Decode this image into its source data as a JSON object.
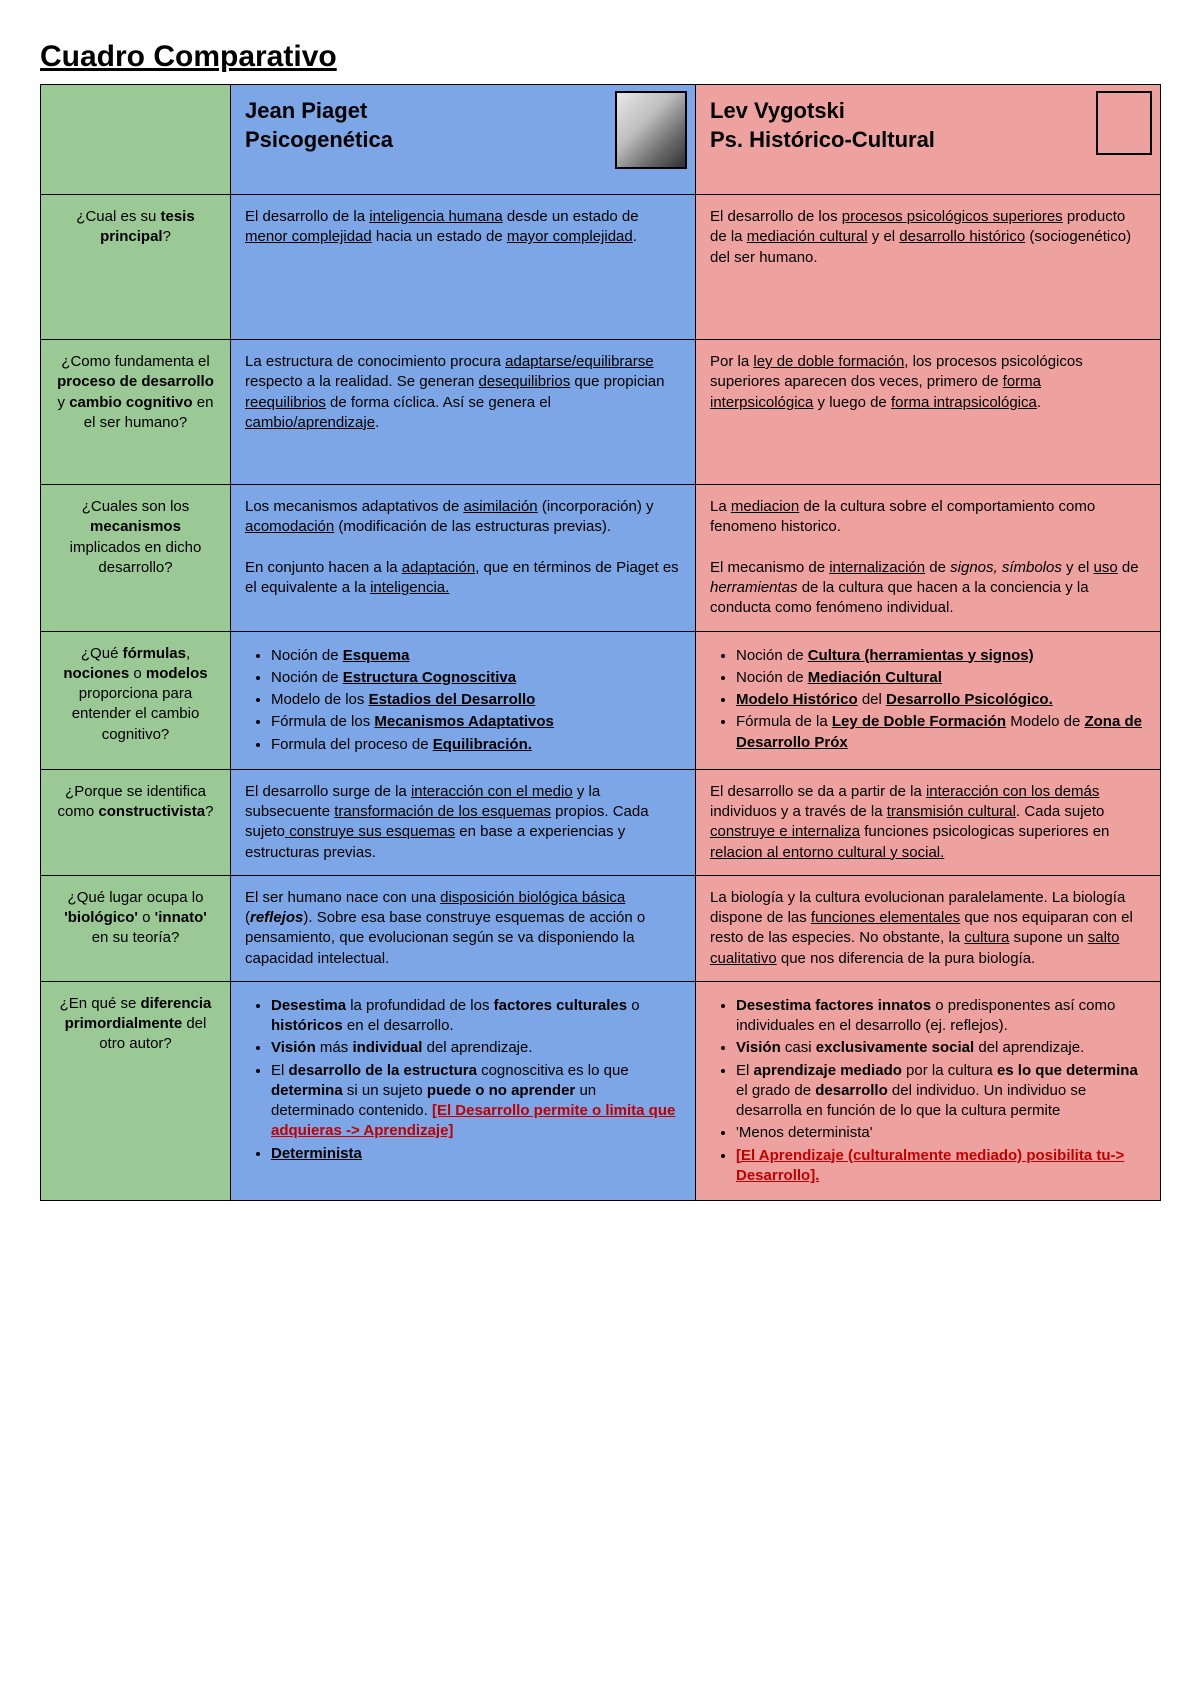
{
  "title": "Cuadro Comparativo",
  "colors": {
    "green": "#9bc995",
    "blue": "#7ca6e5",
    "pink": "#eea2a0",
    "red_text": "#c00000",
    "border": "#000000"
  },
  "headers": {
    "piaget_name": "Jean Piaget",
    "piaget_sub": "Psicogenética",
    "vygotski_name": "Lev Vygotski",
    "vygotski_sub": "Ps. Histórico-Cultural"
  },
  "rows": [
    {
      "q_pre": "¿Cual es su ",
      "q_b": "tesis principal",
      "q_post": "?",
      "piaget": "El desarrollo de la <u>inteligencia humana</u> desde un estado de <u>menor complejidad</u> hacia un estado de <u>mayor complejidad</u>.",
      "vygotski": "El desarrollo de los <u>procesos psicológicos superiores</u> producto de la <u>mediación cultural</u> y el <u>desarrollo histórico</u> (sociogenético) del ser humano."
    },
    {
      "q_html": "¿Como fundamenta el <b>proceso de desarrollo</b> y <b>cambio cognitivo</b> en el ser humano?",
      "piaget": "La estructura de conocimiento procura <u>adaptarse/equilibrarse</u> respecto a la realidad. Se generan <u>desequilibrios</u> que propician <u>reequilibrios</u> de forma cíclica. Así se genera el <u>cambio/aprendizaje</u>.",
      "vygotski": "Por la <u>ley de doble formación</u>, los procesos psicológicos superiores aparecen dos veces, primero de <u>forma interpsicológica</u> y luego de <u>forma intrapsicológica</u>."
    },
    {
      "q_html": "¿Cuales son los <b>mecanismos</b> implicados en dicho desarrollo?",
      "piaget": "Los mecanismos adaptativos de <u>asimilación</u> (incorporación) y <u>acomodación</u> (modificación de las estructuras previas).<br><br>En conjunto hacen a la <u>adaptación</u>, que en términos de Piaget es el equivalente a la <u>inteligencia.</u>",
      "vygotski": "La <u>mediacion</u> de la cultura sobre el comportamiento como fenomeno historico.<br><br>El mecanismo de <u>internalización</u> de <i>signos, símbolos</i> y el <u>uso</u> de <i>herramientas</i> de la cultura que hacen a la conciencia y la conducta como fenómeno individual."
    },
    {
      "q_html": "¿Qué <b>fórmulas</b>, <b>nociones</b> o <b>modelos</b> proporciona para entender el cambio cognitivo?",
      "piaget_list": [
        "Noción de <b><u>Esquema</u></b>",
        "Noción de <b><u>Estructura Cognoscitiva</u></b>",
        "Modelo de los <b><u>Estadios del Desarrollo</u></b>",
        "Fórmula de los <b><u>Mecanismos Adaptativos</u></b>",
        "Formula del proceso de <b><u>Equilibración.</u></b>"
      ],
      "vygotski_list": [
        "Noción de <b><u>Cultura (herramientas y signos)</u></b>",
        "Noción de <b><u>Mediación Cultural</u></b>",
        "<b><u>Modelo Histórico</u></b> del <b><u>Desarrollo Psicológico.</u></b>",
        "Fórmula de la <b><u>Ley de Doble Formación</u></b> Modelo de <b><u>Zona de Desarrollo Próx</u></b>"
      ]
    },
    {
      "q_html": "¿Porque se identifica como <b>constructivista</b>?",
      "piaget": "El desarrollo surge de la <u>interacción con el medio</u> y la subsecuente <u>transformación de los esquemas</u> propios. Cada sujeto<u> construye sus esquemas</u> en base a experiencias y estructuras previas.",
      "vygotski": "El desarrollo se da a partir de la <u>interacción con los demás</u> individuos y a través de la <u>transmisión cultural</u>. Cada sujeto <u>construye e internaliza</u> funciones psicologicas superiores en <u>relacion al entorno cultural y social.</u>"
    },
    {
      "q_html": "¿Qué lugar ocupa lo <b>'biológico'</b> o <b>'innato'</b> en su teoría?",
      "piaget": "El ser humano nace con una <u>disposición biológica básica</u> (<b><i>reflejos</i></b>). Sobre esa base construye esquemas de acción o pensamiento, que evolucionan según se va disponiendo la capacidad intelectual.",
      "vygotski": "La biología y la cultura evolucionan paralelamente. La biología dispone de las <u>funciones elementales</u> que nos equiparan con el resto de las especies. No obstante, la <u>cultura</u> supone un <u>salto cualitativo</u> que nos diferencia de la pura biología."
    },
    {
      "q_html": "¿En qué se <b>diferencia primordialmente</b> del otro autor?",
      "piaget_list": [
        "<b>Desestima</b> la profundidad de los <b>factores culturales</b> o <b>históricos</b> en el desarrollo.",
        "<b>Visión</b> más <b>individual</b> del aprendizaje.",
        "El <b>desarrollo de la estructura</b> cognoscitiva es lo que <b>determina</b> si un sujeto <b>puede o no aprender</b> un determinado contenido. <span class='red'><b><u>[El Desarrollo permite o limita que adquieras -&gt; Aprendizaje]</u></b></span>",
        "<b><u>Determinista</u></b>"
      ],
      "vygotski_list": [
        "<b>Desestima factores innatos</b> o predisponentes así como individuales en el desarrollo (ej. reflejos).",
        "<b>Visión</b> casi <b>exclusivamente social</b> del aprendizaje.",
        "El <b>aprendizaje mediado</b> por la cultura <b>es lo que determina</b> el grado de <b>desarrollo</b> del individuo. Un individuo se desarrolla en función de lo que la cultura permite",
        "'Menos determinista'",
        "<span class='red'><b><u>[El Aprendizaje (culturalmente mediado) posibilita tu-&gt; Desarrollo].</u></b></span>"
      ]
    }
  ]
}
